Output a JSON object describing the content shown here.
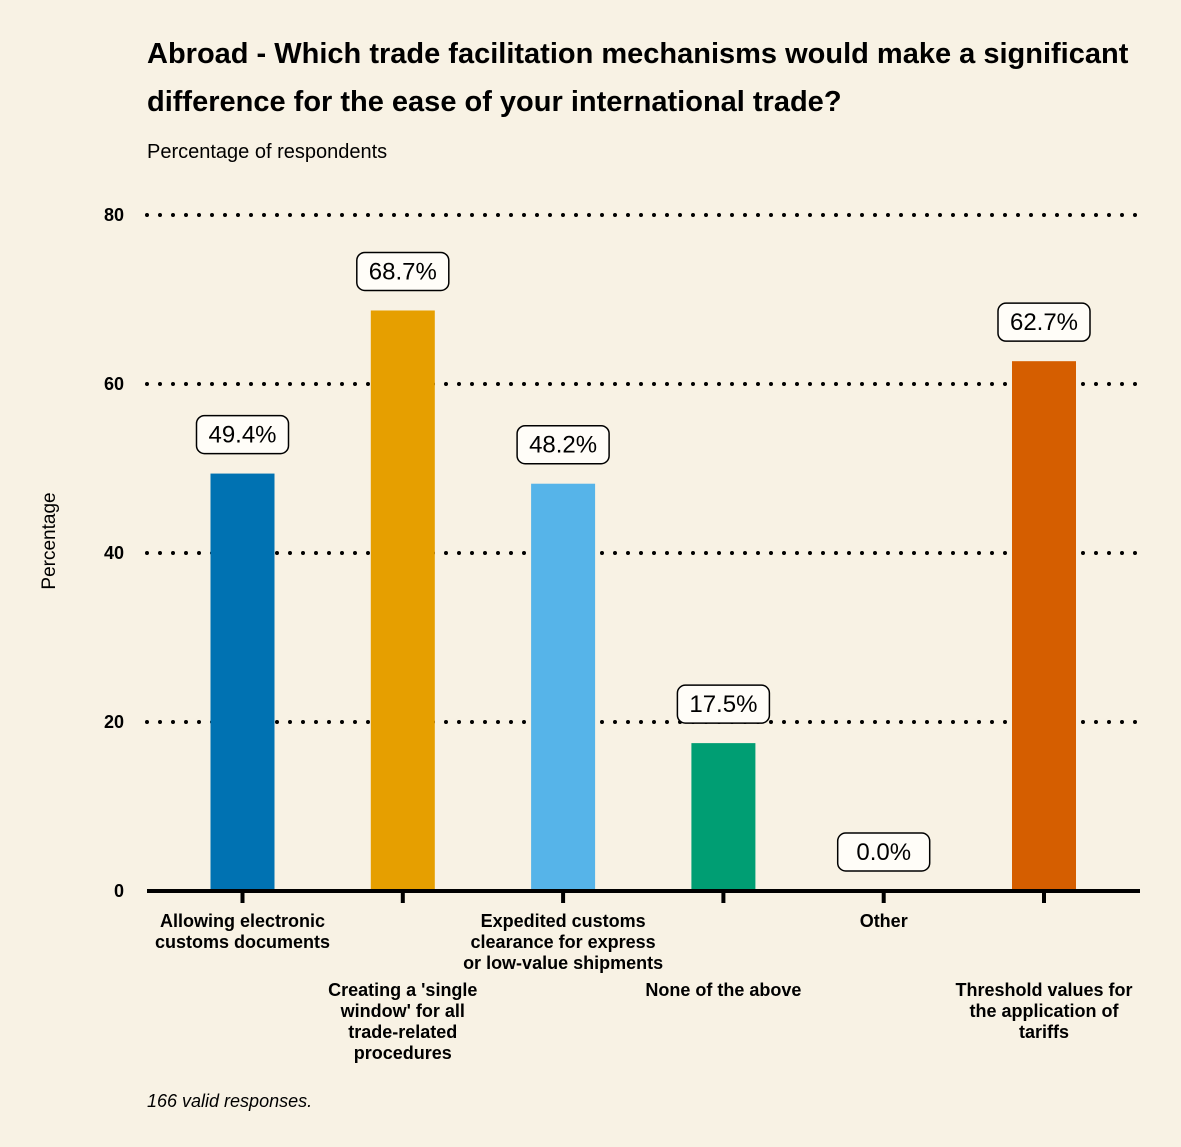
{
  "chart_data": {
    "type": "bar",
    "title": "Abroad - Which trade facilitation mechanisms would make a significant difference for the ease of your international trade?",
    "subtitle": "Percentage of respondents",
    "ylabel": "Percentage",
    "xlabel": "",
    "ylim": [
      0,
      80
    ],
    "yticks": [
      0,
      20,
      40,
      60,
      80
    ],
    "grid": "horizontal-dotted",
    "categories": [
      "Allowing electronic customs documents",
      "Creating a 'single window' for all trade-related procedures",
      "Expedited customs clearance for express or low-value shipments",
      "None of the above",
      "Other",
      "Threshold values for the application of tariffs"
    ],
    "category_label_lines": [
      [
        "Allowing electronic",
        "customs documents"
      ],
      [
        "Creating a 'single",
        "window' for all",
        "trade-related",
        "procedures"
      ],
      [
        "Expedited customs",
        "clearance for express",
        "or low-value shipments"
      ],
      [
        "None of the above"
      ],
      [
        "Other"
      ],
      [
        "Threshold values for",
        "the application of",
        "tariffs"
      ]
    ],
    "values": [
      49.4,
      68.7,
      48.2,
      17.5,
      0.0,
      62.7
    ],
    "data_labels": [
      "49.4%",
      "68.7%",
      "48.2%",
      "17.5%",
      "0.0%",
      "62.7%"
    ],
    "colors": [
      "#0072b2",
      "#e69f00",
      "#56b4e9",
      "#009e73",
      "#f0e442",
      "#d55e00"
    ],
    "caption": "166 valid responses."
  }
}
